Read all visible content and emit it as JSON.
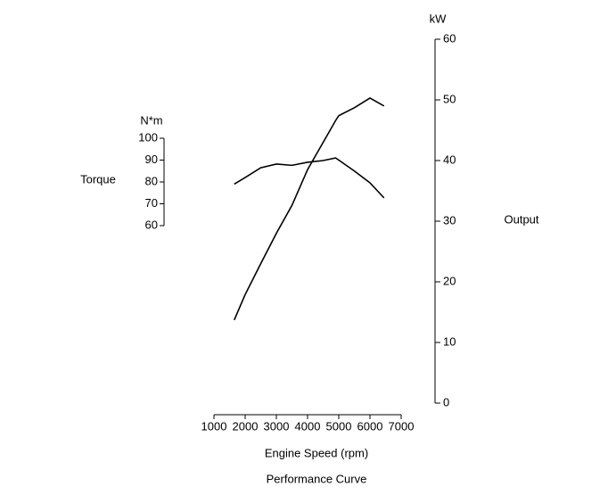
{
  "chart_data": {
    "type": "line",
    "title": "Performance Curve",
    "x_label": "Engine Speed (rpm)",
    "y_label": "Torque",
    "y_unit": "N*m",
    "y2_label": "Output",
    "y2_unit": "kW",
    "x": [
      1650,
      2000,
      2500,
      3000,
      3500,
      4000,
      4500,
      4900,
      5000,
      5500,
      6000,
      6450
    ],
    "series": [
      {
        "color": "#000000",
        "axis": "y",
        "values": [
          79,
          82,
          86.5,
          88.2,
          87.6,
          89,
          89.8,
          91,
          90,
          85,
          79.6,
          72.7
        ]
      },
      {
        "color": "#000000",
        "axis": "y2",
        "values": [
          13.7,
          17.9,
          23,
          28,
          32.6,
          38.5,
          43,
          46.6,
          47.4,
          48.7,
          50.3,
          49
        ]
      }
    ],
    "xlim": [
      1000,
      7000
    ],
    "xticks": [
      1000,
      2000,
      3000,
      4000,
      5000,
      6000,
      7000
    ],
    "ylim": [
      60,
      100
    ],
    "yticks": [
      60,
      70,
      80,
      90,
      100
    ],
    "y2lim": [
      0,
      60
    ],
    "y2ticks": [
      0,
      10,
      20,
      30,
      40,
      50,
      60
    ]
  }
}
